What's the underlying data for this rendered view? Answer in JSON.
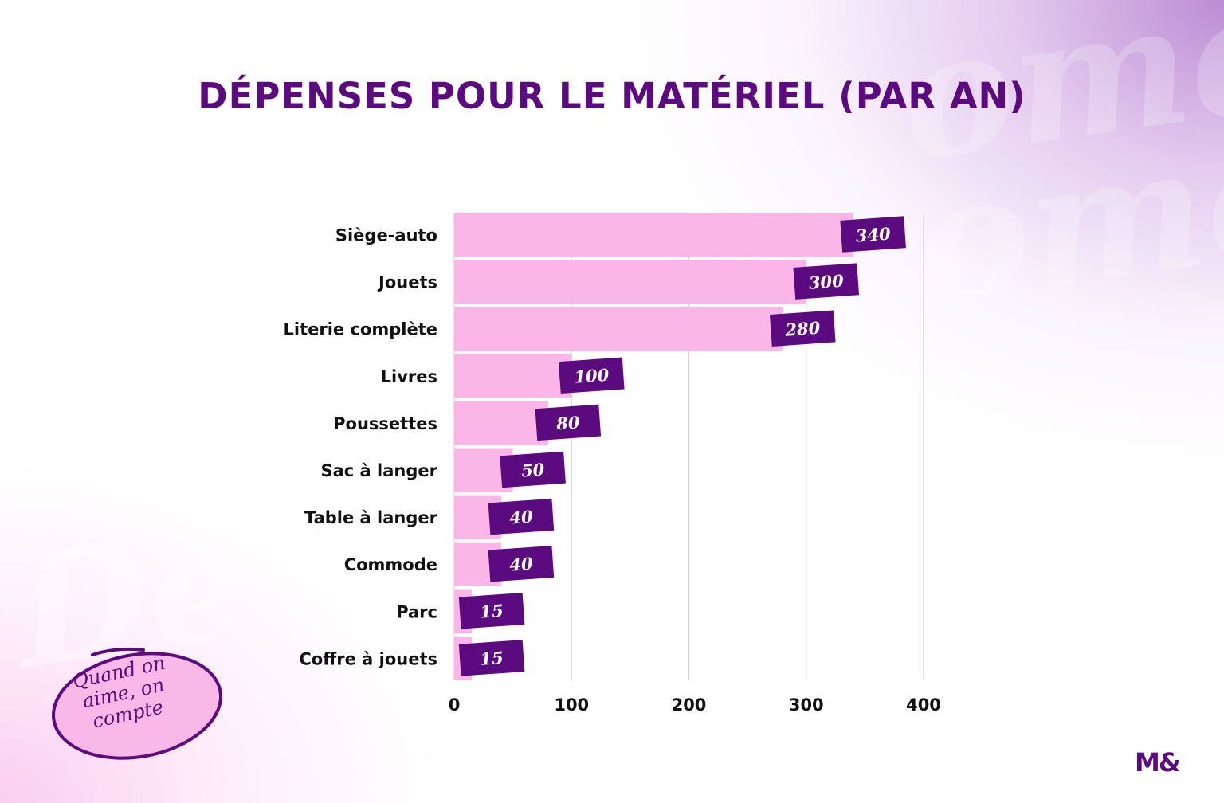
{
  "title": "DÉPENSES POUR LE MATÉRIEL (PAR AN)",
  "stamp": {
    "text": "Quand on\naime, on\ncompte"
  },
  "logo": "M&",
  "colors": {
    "bar": "#fbb6e8",
    "label_badge": "#5b0a80",
    "title": "#5b0a80",
    "gridline": "#d9d0dc",
    "stamp_fill": "#f9b9e6"
  },
  "chart_data": {
    "type": "bar",
    "orientation": "horizontal",
    "title": "DÉPENSES POUR LE MATÉRIEL (PAR AN)",
    "xlabel": "",
    "ylabel": "",
    "categories": [
      "Siège-auto",
      "Jouets",
      "Literie complète",
      "Livres",
      "Poussettes",
      "Sac à langer",
      "Table à langer",
      "Commode",
      "Parc",
      "Coffre à jouets"
    ],
    "values": [
      340,
      300,
      280,
      100,
      80,
      50,
      40,
      40,
      15,
      15
    ],
    "data_labels": [
      "340",
      "300",
      "280",
      "100",
      "80",
      "50",
      "40",
      "40",
      "15",
      "15"
    ],
    "xlim": [
      0,
      400
    ],
    "xticks": [
      0,
      100,
      200,
      300,
      400
    ],
    "xtick_labels": [
      "0",
      "100",
      "200",
      "300",
      "400"
    ],
    "grid": true,
    "legend": "none"
  }
}
